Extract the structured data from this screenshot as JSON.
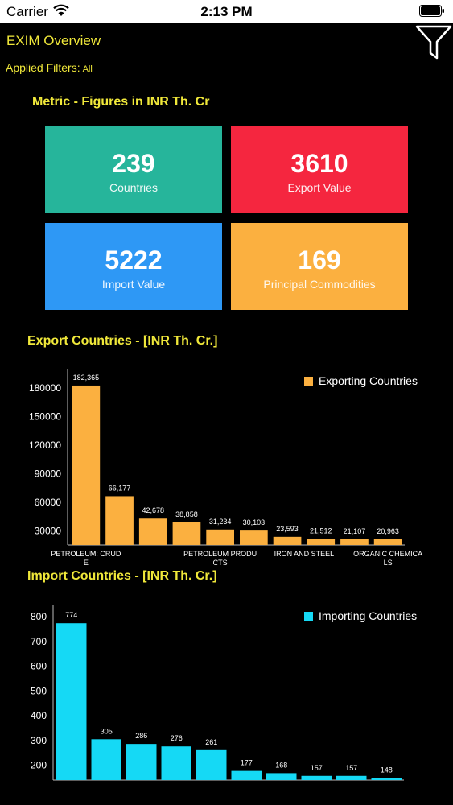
{
  "status": {
    "carrier": "Carrier",
    "time": "2:13 PM"
  },
  "header": {
    "title": "EXIM Overview",
    "applied_filters_label": "Applied Filters:",
    "applied_filters_value": "All",
    "filter_icon": "filter-funnel-icon"
  },
  "metrics": {
    "title": "Metric - Figures in INR Th. Cr",
    "tiles": [
      {
        "value": "239",
        "label": "Countries",
        "color": "#26b59b"
      },
      {
        "value": "3610",
        "label": "Export Value",
        "color": "#f5263f"
      },
      {
        "value": "5222",
        "label": "Import Value",
        "color": "#2e98f5"
      },
      {
        "value": "169",
        "label": "Principal Commodities",
        "color": "#fbb040"
      }
    ]
  },
  "chart_data": [
    {
      "type": "bar",
      "title": "Export Countries - [INR Th. Cr.]",
      "legend": "Exporting Countries",
      "legend_position": "top-right",
      "color": "#fbb040",
      "ylim": [
        15000,
        195000
      ],
      "yticks": [
        "180000",
        "150000",
        "120000",
        "90000",
        "60000",
        "30000"
      ],
      "ytick_values": [
        180000,
        150000,
        120000,
        90000,
        60000,
        30000
      ],
      "values": [
        182365,
        66177,
        42678,
        38858,
        31234,
        30103,
        23593,
        21512,
        21107,
        20963
      ],
      "value_labels": [
        "182,365",
        "66,177",
        "42,678",
        "38,858",
        "31,234",
        "30,103",
        "23,593",
        "21,512",
        "21,107",
        "20,963"
      ],
      "xtick_labels": [
        {
          "index": 0,
          "lines": [
            "PETROLEUM: CRUD",
            "E"
          ]
        },
        {
          "index": 4,
          "lines": [
            "PETROLEUM PRODU",
            "CTS"
          ]
        },
        {
          "index": 6.5,
          "lines": [
            "IRON AND STEEL"
          ]
        },
        {
          "index": 9,
          "lines": [
            "ORGANIC CHEMICA",
            "LS"
          ]
        }
      ]
    },
    {
      "type": "bar",
      "title": "Import Countries - [INR Th. Cr.]",
      "legend": "Importing Countries",
      "legend_position": "top-right",
      "color": "#15d9f5",
      "ylim": [
        140,
        830
      ],
      "yticks": [
        "800",
        "700",
        "600",
        "500",
        "400",
        "300",
        "200"
      ],
      "ytick_values": [
        800,
        700,
        600,
        500,
        400,
        300,
        200
      ],
      "values": [
        774,
        305,
        286,
        276,
        261,
        177,
        168,
        157,
        157,
        148
      ],
      "value_labels": [
        "774",
        "305",
        "286",
        "276",
        "261",
        "177",
        "168",
        "157",
        "157",
        "148"
      ],
      "xtick_labels": []
    }
  ]
}
